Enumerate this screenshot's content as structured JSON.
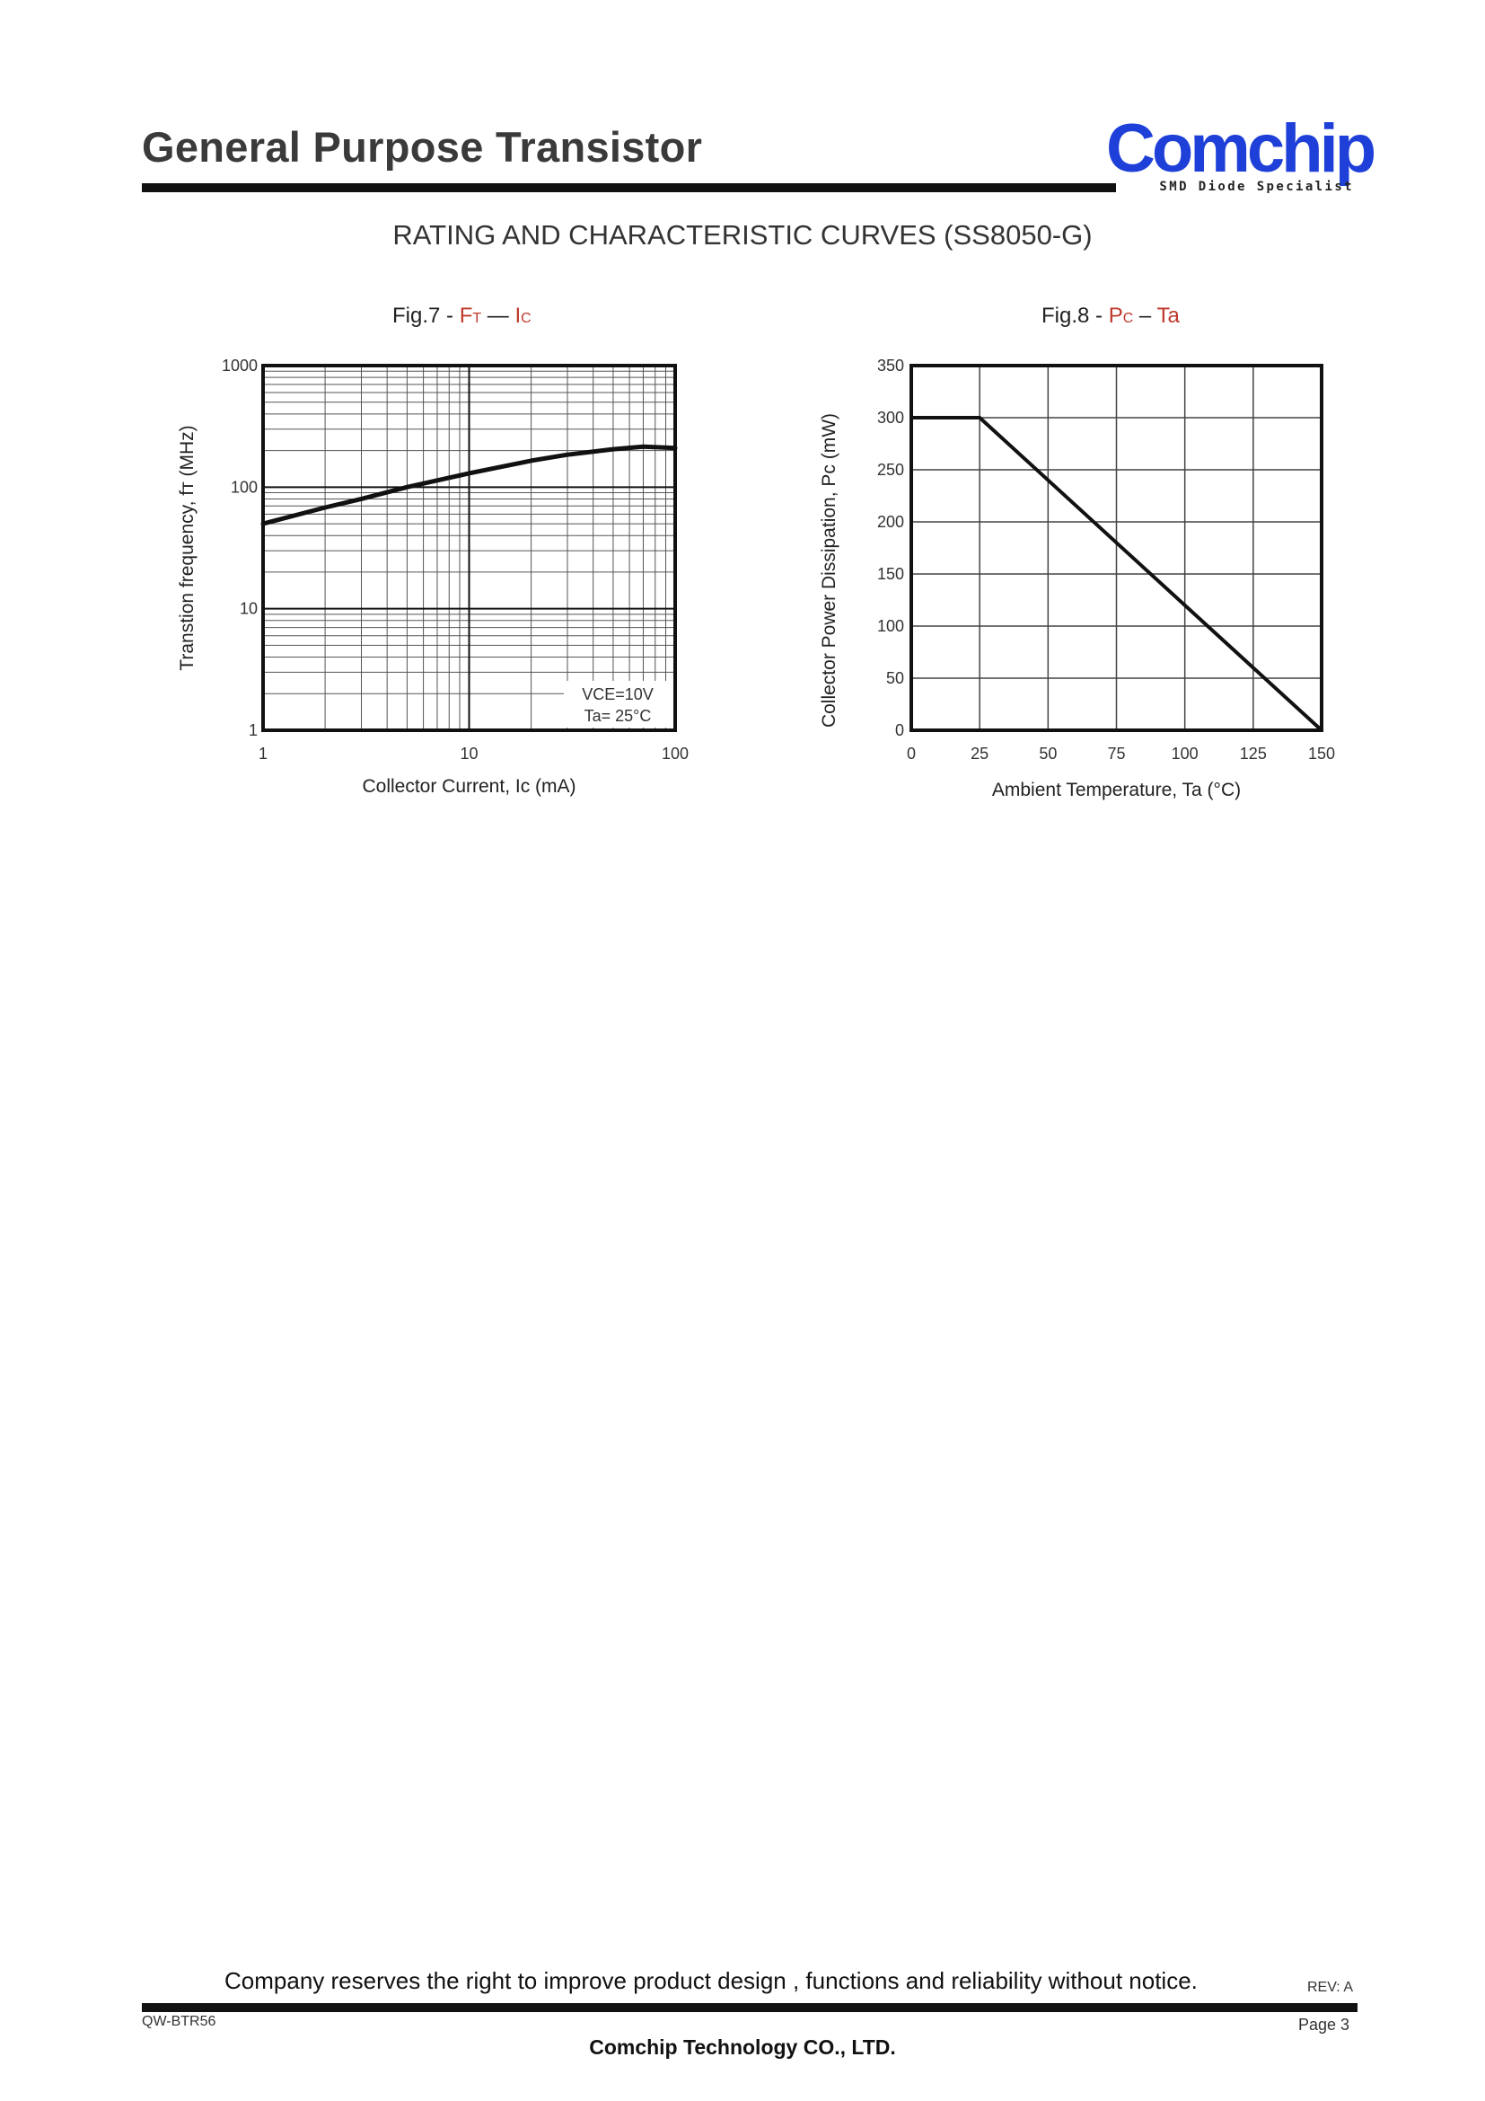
{
  "header": {
    "title": "General Purpose Transistor",
    "logo_text": "Comchip",
    "logo_tagline": "SMD Diode Specialist"
  },
  "section_title": "RATING AND CHARACTERISTIC CURVES (SS8050-G)",
  "figures": {
    "fig7": {
      "prefix": "Fig.7 - ",
      "a_main": "F",
      "a_sub": "T",
      "dash": " — ",
      "b_main": "I",
      "b_sub": "C"
    },
    "fig8": {
      "prefix": "Fig.8 - ",
      "a_main": "P",
      "a_sub": "C",
      "dash": " – ",
      "b_main": "Ta",
      "b_sub": ""
    }
  },
  "chart_data": [
    {
      "type": "line",
      "xlabel": "Collector Current, Ic (mA)",
      "ylabel": "Transtion frequency, fт (MHz)",
      "xscale": "log",
      "yscale": "log",
      "xlim": [
        1,
        100
      ],
      "ylim": [
        1,
        1000
      ],
      "x_ticks": [
        1,
        10,
        100
      ],
      "y_ticks": [
        1,
        10,
        100,
        1000
      ],
      "grid": true,
      "annotations": [
        "VCE=10V",
        "Ta= 25°C"
      ],
      "series": [
        {
          "x": [
            1,
            2,
            3,
            5,
            10,
            20,
            30,
            50,
            70,
            100
          ],
          "y": [
            50,
            68,
            80,
            100,
            130,
            165,
            185,
            205,
            215,
            210
          ]
        }
      ]
    },
    {
      "type": "line",
      "xlabel": "Ambient Temperature, Ta (°C)",
      "ylabel": "Collector Power Dissipation, Pc (mW)",
      "xlim": [
        0,
        150
      ],
      "ylim": [
        0,
        350
      ],
      "x_ticks": [
        0,
        25,
        50,
        75,
        100,
        125,
        150
      ],
      "y_ticks": [
        0,
        50,
        100,
        150,
        200,
        250,
        300,
        350
      ],
      "grid": true,
      "series": [
        {
          "x": [
            0,
            25,
            150
          ],
          "y": [
            300,
            300,
            0
          ]
        }
      ]
    }
  ],
  "footer": {
    "note": "Company reserves the right to improve product design , functions and reliability without notice.",
    "rev": "REV: A",
    "doc_code": "QW-BTR56",
    "page": "Page 3",
    "company": "Comchip Technology CO., LTD."
  }
}
